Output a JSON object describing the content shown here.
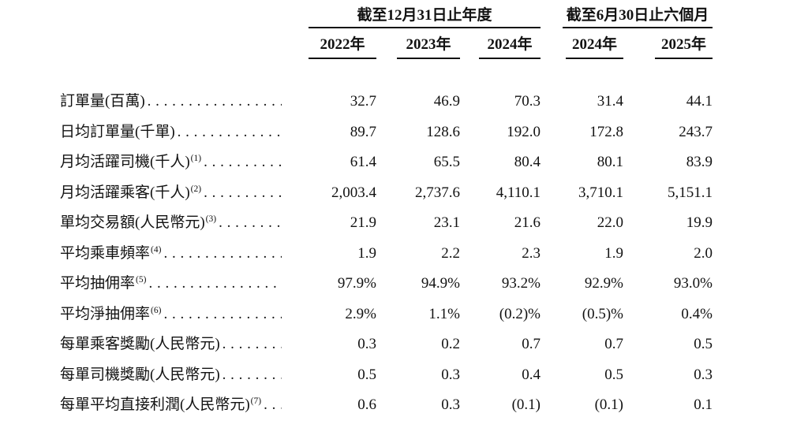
{
  "table": {
    "col_groups": [
      {
        "title": "截至12月31日止年度",
        "years": [
          "2022年",
          "2023年",
          "2024年"
        ]
      },
      {
        "title": "截至6月30日止六個月",
        "years": [
          "2024年",
          "2025年"
        ]
      }
    ],
    "rows": [
      {
        "label": "訂單量(百萬)",
        "footnote": "",
        "values": [
          "32.7",
          "46.9",
          "70.3",
          "31.4",
          "44.1"
        ]
      },
      {
        "label": "日均訂單量(千單)",
        "footnote": "",
        "values": [
          "89.7",
          "128.6",
          "192.0",
          "172.8",
          "243.7"
        ]
      },
      {
        "label": "月均活躍司機(千人)",
        "footnote": "(1)",
        "values": [
          "61.4",
          "65.5",
          "80.4",
          "80.1",
          "83.9"
        ]
      },
      {
        "label": "月均活躍乘客(千人)",
        "footnote": "(2)",
        "values": [
          "2,003.4",
          "2,737.6",
          "4,110.1",
          "3,710.1",
          "5,151.1"
        ]
      },
      {
        "label": "單均交易額(人民幣元)",
        "footnote": "(3)",
        "values": [
          "21.9",
          "23.1",
          "21.6",
          "22.0",
          "19.9"
        ]
      },
      {
        "label": "平均乘車頻率",
        "footnote": "(4)",
        "values": [
          "1.9",
          "2.2",
          "2.3",
          "1.9",
          "2.0"
        ]
      },
      {
        "label": "平均抽佣率",
        "footnote": "(5)",
        "values": [
          "97.9%",
          "94.9%",
          "93.2%",
          "92.9%",
          "93.0%"
        ]
      },
      {
        "label": "平均淨抽佣率",
        "footnote": "(6)",
        "values": [
          "2.9%",
          "1.1%",
          "(0.2)%",
          "(0.5)%",
          "0.4%"
        ]
      },
      {
        "label": "每單乘客獎勵(人民幣元)",
        "footnote": "",
        "values": [
          "0.3",
          "0.2",
          "0.7",
          "0.7",
          "0.5"
        ]
      },
      {
        "label": "每單司機獎勵(人民幣元)",
        "footnote": "",
        "values": [
          "0.5",
          "0.3",
          "0.4",
          "0.5",
          "0.3"
        ]
      },
      {
        "label": "每單平均直接利潤(人民幣元)",
        "footnote": "(7)",
        "values": [
          "0.6",
          "0.3",
          "(0.1)",
          "(0.1)",
          "0.1"
        ]
      }
    ]
  },
  "colors": {
    "text": "#121212",
    "rule": "#121212",
    "background": "#ffffff"
  }
}
